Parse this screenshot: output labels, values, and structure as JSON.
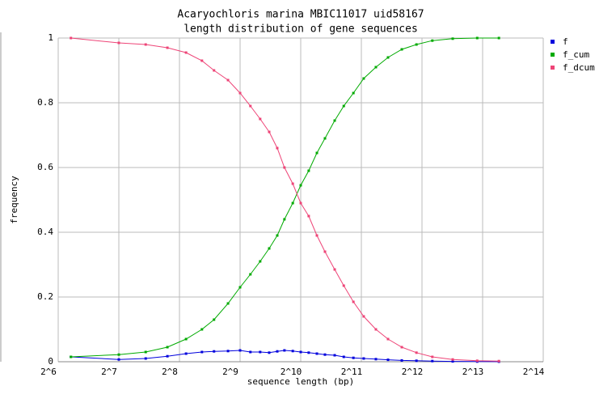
{
  "chart_data": {
    "type": "line",
    "title": "Acaryochloris marina MBIC11017 uid58167",
    "subtitle": "length distribution of gene sequences",
    "x_label": "sequence length (bp)",
    "y_label": "frequency",
    "x_scale": "log",
    "x_log_base": 2,
    "xlim": [
      64,
      16384
    ],
    "xticks": [
      {
        "value": 64,
        "label": "2^6"
      },
      {
        "value": 128,
        "label": "2^7"
      },
      {
        "value": 256,
        "label": "2^8"
      },
      {
        "value": 512,
        "label": "2^9"
      },
      {
        "value": 1024,
        "label": "2^10"
      },
      {
        "value": 2048,
        "label": "2^11"
      },
      {
        "value": 4096,
        "label": "2^12"
      },
      {
        "value": 8192,
        "label": "2^13"
      },
      {
        "value": 16384,
        "label": "2^14"
      }
    ],
    "ylim": [
      0,
      1
    ],
    "yticks": [
      0,
      0.2,
      0.4,
      0.6,
      0.8,
      1
    ],
    "grid": true,
    "legend": "right",
    "x": [
      74,
      128,
      174,
      223,
      276,
      331,
      380,
      446,
      512,
      576,
      644,
      714,
      783,
      850,
      935,
      1024,
      1122,
      1232,
      1351,
      1510,
      1675,
      1870,
      2104,
      2418,
      2778,
      3252,
      3845,
      4610,
      5820,
      7700,
      9870
    ],
    "series": [
      {
        "name": "f",
        "color": "#0000dd",
        "values": [
          0.015,
          0.007,
          0.01,
          0.017,
          0.025,
          0.03,
          0.032,
          0.033,
          0.035,
          0.03,
          0.03,
          0.028,
          0.032,
          0.035,
          0.033,
          0.03,
          0.028,
          0.025,
          0.022,
          0.02,
          0.015,
          0.012,
          0.01,
          0.008,
          0.006,
          0.004,
          0.003,
          0.002,
          0.001,
          0.0005,
          0.0002
        ]
      },
      {
        "name": "f_cum",
        "color": "#00aa00",
        "values": [
          0.015,
          0.022,
          0.03,
          0.045,
          0.07,
          0.1,
          0.13,
          0.18,
          0.23,
          0.27,
          0.31,
          0.35,
          0.39,
          0.44,
          0.49,
          0.545,
          0.59,
          0.645,
          0.69,
          0.745,
          0.79,
          0.83,
          0.875,
          0.91,
          0.94,
          0.965,
          0.98,
          0.992,
          0.998,
          1,
          1
        ]
      },
      {
        "name": "f_dcum",
        "color": "#ee4477",
        "values": [
          1,
          0.985,
          0.98,
          0.97,
          0.955,
          0.93,
          0.9,
          0.87,
          0.83,
          0.79,
          0.75,
          0.71,
          0.66,
          0.6,
          0.55,
          0.49,
          0.45,
          0.39,
          0.34,
          0.285,
          0.235,
          0.185,
          0.14,
          0.1,
          0.07,
          0.045,
          0.028,
          0.015,
          0.007,
          0.003,
          0.002
        ]
      }
    ]
  }
}
